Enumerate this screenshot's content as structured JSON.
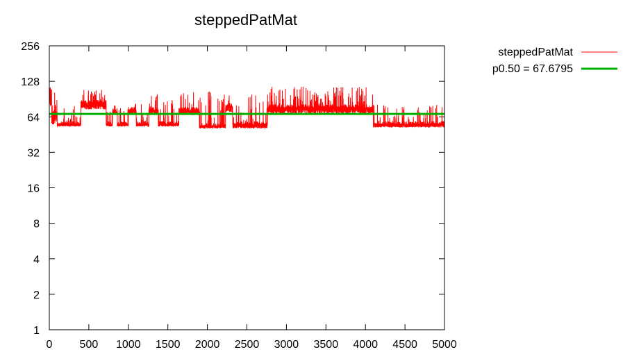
{
  "chart_data": {
    "type": "line",
    "title": "steppedPatMat",
    "xlabel": "",
    "ylabel": "",
    "xlim": [
      0,
      5000
    ],
    "ylim": [
      1,
      256
    ],
    "yscale": "log2",
    "grid": false,
    "legend_position": "outside-right",
    "x_ticks": [
      "0",
      "500",
      "1000",
      "1500",
      "2000",
      "2500",
      "3000",
      "3500",
      "4000",
      "4500",
      "5000"
    ],
    "y_ticks": [
      "1",
      "2",
      "4",
      "8",
      "16",
      "32",
      "64",
      "128",
      "256"
    ],
    "series": [
      {
        "name": "steppedPatMat",
        "color": "#ff0000",
        "kind": "noisy-steps",
        "segments": [
          {
            "x": [
              0,
              30
            ],
            "base": 110,
            "low": 75,
            "high": 165
          },
          {
            "x": [
              30,
              100
            ],
            "base": 70,
            "low": 55,
            "high": 105
          },
          {
            "x": [
              100,
              400
            ],
            "base": 56,
            "low": 53,
            "high": 80
          },
          {
            "x": [
              400,
              720
            ],
            "base": 85,
            "low": 74,
            "high": 110
          },
          {
            "x": [
              720,
              800
            ],
            "base": 56,
            "low": 53,
            "high": 80
          },
          {
            "x": [
              800,
              860
            ],
            "base": 72,
            "low": 68,
            "high": 82
          },
          {
            "x": [
              860,
              1000
            ],
            "base": 56,
            "low": 53,
            "high": 80
          },
          {
            "x": [
              1000,
              1100
            ],
            "base": 74,
            "low": 68,
            "high": 84
          },
          {
            "x": [
              1100,
              1260
            ],
            "base": 56,
            "low": 53,
            "high": 82
          },
          {
            "x": [
              1260,
              1380
            ],
            "base": 74,
            "low": 68,
            "high": 100
          },
          {
            "x": [
              1380,
              1640
            ],
            "base": 56,
            "low": 53,
            "high": 90
          },
          {
            "x": [
              1640,
              1900
            ],
            "base": 74,
            "low": 66,
            "high": 108
          },
          {
            "x": [
              1900,
              2230
            ],
            "base": 54,
            "low": 51,
            "high": 108
          },
          {
            "x": [
              2230,
              2320
            ],
            "base": 80,
            "low": 70,
            "high": 98
          },
          {
            "x": [
              2320,
              2760
            ],
            "base": 56,
            "low": 51,
            "high": 100
          },
          {
            "x": [
              2760,
              4100
            ],
            "base": 78,
            "low": 68,
            "high": 116
          },
          {
            "x": [
              4100,
              5000
            ],
            "base": 56,
            "low": 52,
            "high": 82
          }
        ]
      },
      {
        "name": "p0.50 = 67.6795",
        "color": "#00b000",
        "kind": "constant",
        "values": [
          67.6795
        ]
      }
    ]
  }
}
